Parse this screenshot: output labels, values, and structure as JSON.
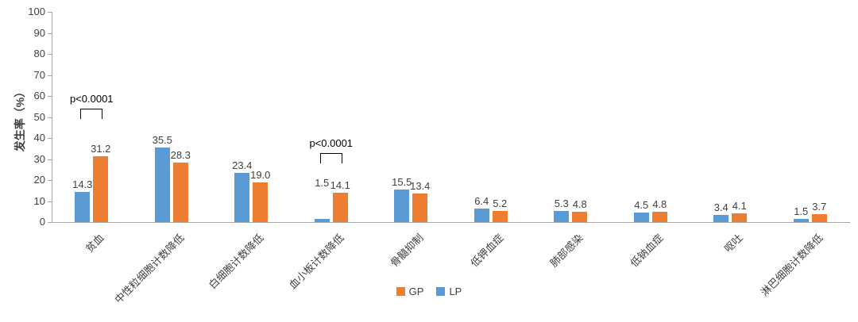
{
  "chart_data": {
    "type": "bar",
    "title": "",
    "ylabel": "发生率（%）",
    "xlabel": "",
    "ylim": [
      0,
      100
    ],
    "ytick_step": 10,
    "grid": false,
    "legend_position": "bottom",
    "categories": [
      "贫血",
      "中性粒细胞计数降低",
      "白细胞计数降低",
      "血小板计数降低",
      "骨髓抑制",
      "低钾血症",
      "肺部感染",
      "低钠血症",
      "呕吐",
      "淋巴细胞计数降低"
    ],
    "series": [
      {
        "name": "LP",
        "color": "#5B9BD5",
        "values": [
          14.3,
          35.5,
          23.4,
          1.5,
          15.5,
          6.4,
          5.3,
          4.5,
          3.4,
          1.5
        ],
        "labels": [
          "14.3",
          "35.5",
          "23.4",
          "1.5",
          "15.5",
          "6.4",
          "5.3",
          "4.5",
          "3.4",
          "1.5"
        ]
      },
      {
        "name": "GP",
        "color": "#ED7D31",
        "values": [
          31.2,
          28.3,
          19.0,
          14.1,
          13.4,
          5.2,
          4.8,
          4.8,
          4.1,
          3.7
        ],
        "labels": [
          "31.2",
          "28.3",
          "19.0",
          "14.1",
          "13.4",
          "5.2",
          "4.8",
          "4.8",
          "4.1",
          "3.7"
        ]
      }
    ],
    "label_overrides": [
      {
        "series": "LP",
        "category_index": 3,
        "y_pct": 15
      }
    ],
    "annotations": [
      {
        "category_index": 0,
        "text": "p<0.0001",
        "bracket_top_pct": 54
      },
      {
        "category_index": 3,
        "text": "p<0.0001",
        "bracket_top_pct": 33
      }
    ],
    "legend": [
      {
        "label": "GP",
        "color": "#ED7D31"
      },
      {
        "label": "LP",
        "color": "#5B9BD5"
      }
    ],
    "axis_color": "#A6A6A6"
  }
}
